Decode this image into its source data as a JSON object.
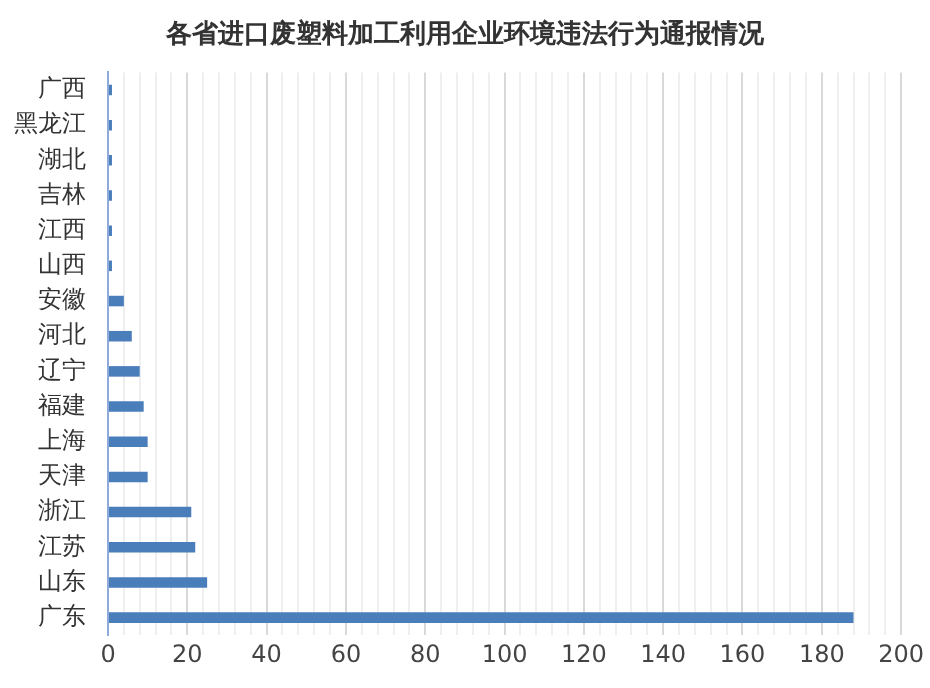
{
  "chart_data": {
    "type": "bar",
    "orientation": "horizontal",
    "title": "各省进口废塑料加工利用企业环境违法行为通报情况",
    "categories": [
      "广西",
      "黑龙江",
      "湖北",
      "吉林",
      "江西",
      "山西",
      "安徽",
      "河北",
      "辽宁",
      "福建",
      "上海",
      "天津",
      "浙江",
      "江苏",
      "山东",
      "广东"
    ],
    "values": [
      1,
      1,
      1,
      1,
      1,
      1,
      4,
      6,
      8,
      9,
      10,
      10,
      21,
      22,
      25,
      188
    ],
    "color": "#4a7ebb",
    "xlim": [
      0,
      200
    ],
    "xticks": [
      0,
      {
        "value": 4,
        "label": null
      },
      {
        "value": 8,
        "label": null
      },
      {
        "value": 12,
        "label": null
      },
      {
        "value": 16,
        "label": null
      },
      20,
      {
        "value": 24,
        "label": null
      },
      {
        "value": 28,
        "label": null
      },
      {
        "value": 32,
        "label": null
      },
      {
        "value": 36,
        "label": null
      },
      40,
      {
        "value": 44,
        "label": null
      },
      {
        "value": 48,
        "label": null
      },
      {
        "value": 52,
        "label": null
      },
      {
        "value": 56,
        "label": null
      },
      60,
      {
        "value": 64,
        "label": null
      },
      {
        "value": 68,
        "label": null
      },
      {
        "value": 72,
        "label": null
      },
      {
        "value": 76,
        "label": null
      },
      80,
      {
        "value": 84,
        "label": null
      },
      {
        "value": 88,
        "label": null
      },
      {
        "value": 92,
        "label": null
      },
      {
        "value": 96,
        "label": null
      },
      100,
      {
        "value": 104,
        "label": null
      },
      {
        "value": 108,
        "label": null
      },
      {
        "value": 112,
        "label": null
      },
      {
        "value": 116,
        "label": null
      },
      120,
      {
        "value": 124,
        "label": null
      },
      {
        "value": 128,
        "label": null
      },
      {
        "value": 132,
        "label": null
      },
      {
        "value": 136,
        "label": null
      },
      140,
      {
        "value": 144,
        "label": null
      },
      {
        "value": 148,
        "label": null
      },
      {
        "value": 152,
        "label": null
      },
      {
        "value": 156,
        "label": null
      },
      160,
      {
        "value": 164,
        "label": null
      },
      {
        "value": 168,
        "label": null
      },
      {
        "value": 172,
        "label": null
      },
      {
        "value": 176,
        "label": null
      },
      180,
      {
        "value": 184,
        "label": null
      },
      {
        "value": 188,
        "label": null
      },
      {
        "value": 192,
        "label": null
      },
      {
        "value": 196,
        "label": null
      },
      200
    ],
    "grid": "x"
  }
}
